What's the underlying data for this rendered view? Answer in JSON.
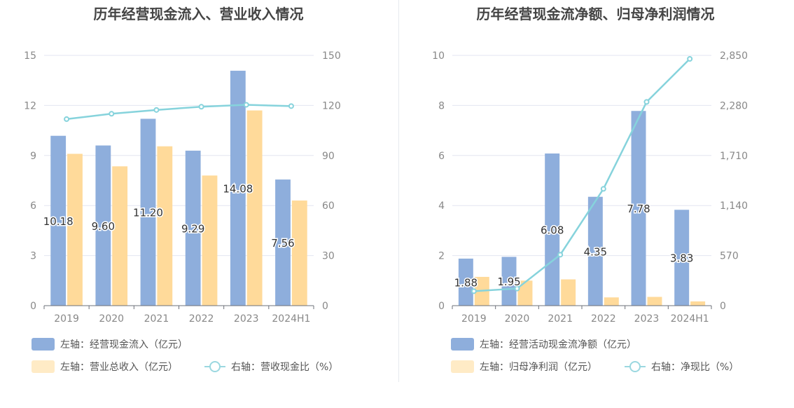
{
  "chart_data": [
    {
      "type": "bar",
      "title": "历年经营现金流入、营业收入情况",
      "categories": [
        "2019",
        "2020",
        "2021",
        "2022",
        "2023",
        "2024H1"
      ],
      "left_axis": {
        "min": 0,
        "max": 15,
        "ticks": [
          "0",
          "3",
          "6",
          "9",
          "12",
          "15"
        ]
      },
      "right_axis": {
        "min": 0,
        "max": 150,
        "ticks": [
          "0",
          "30",
          "60",
          "90",
          "120",
          "150"
        ]
      },
      "series": [
        {
          "name": "左轴：经营现金流入（亿元）",
          "axis": "left",
          "kind": "bar",
          "color": "#8eaedc",
          "values": [
            10.18,
            9.6,
            11.2,
            9.29,
            14.08,
            7.56
          ],
          "labels": [
            "10.18",
            "9.60",
            "11.20",
            "9.29",
            "14.08",
            "7.56"
          ]
        },
        {
          "name": "左轴：营业总收入（亿元）",
          "axis": "left",
          "kind": "bar",
          "color": "#ffda9a",
          "values": [
            9.1,
            8.35,
            9.55,
            7.8,
            11.7,
            6.3
          ]
        },
        {
          "name": "右轴：营收现金比（%）",
          "axis": "right",
          "kind": "line",
          "color": "#86d3dc",
          "values": [
            111.8,
            115.0,
            117.3,
            119.2,
            120.4,
            119.6
          ]
        }
      ]
    },
    {
      "type": "bar",
      "title": "历年经营现金流净额、归母净利润情况",
      "categories": [
        "2019",
        "2020",
        "2021",
        "2022",
        "2023",
        "2024H1"
      ],
      "left_axis": {
        "min": 0,
        "max": 10,
        "ticks": [
          "0",
          "2",
          "4",
          "6",
          "8",
          "10"
        ]
      },
      "right_axis": {
        "min": 0,
        "max": 2850,
        "ticks": [
          "0",
          "570",
          "1,140",
          "1,710",
          "2,280",
          "2,850"
        ]
      },
      "series": [
        {
          "name": "左轴：经营活动现金流净额（亿元）",
          "axis": "left",
          "kind": "bar",
          "color": "#8eaedc",
          "values": [
            1.88,
            1.95,
            6.08,
            4.35,
            7.78,
            3.83
          ],
          "labels": [
            "1.88",
            "1.95",
            "6.08",
            "4.35",
            "7.78",
            "3.83"
          ]
        },
        {
          "name": "左轴：归母净利润（亿元）",
          "axis": "left",
          "kind": "bar",
          "color": "#ffda9a",
          "values": [
            1.15,
            1.0,
            1.05,
            0.33,
            0.35,
            0.17
          ]
        },
        {
          "name": "右轴：净现比（%）",
          "axis": "right",
          "kind": "line",
          "color": "#86d3dc",
          "values": [
            165,
            195,
            580,
            1330,
            2320,
            2810
          ]
        }
      ]
    }
  ]
}
